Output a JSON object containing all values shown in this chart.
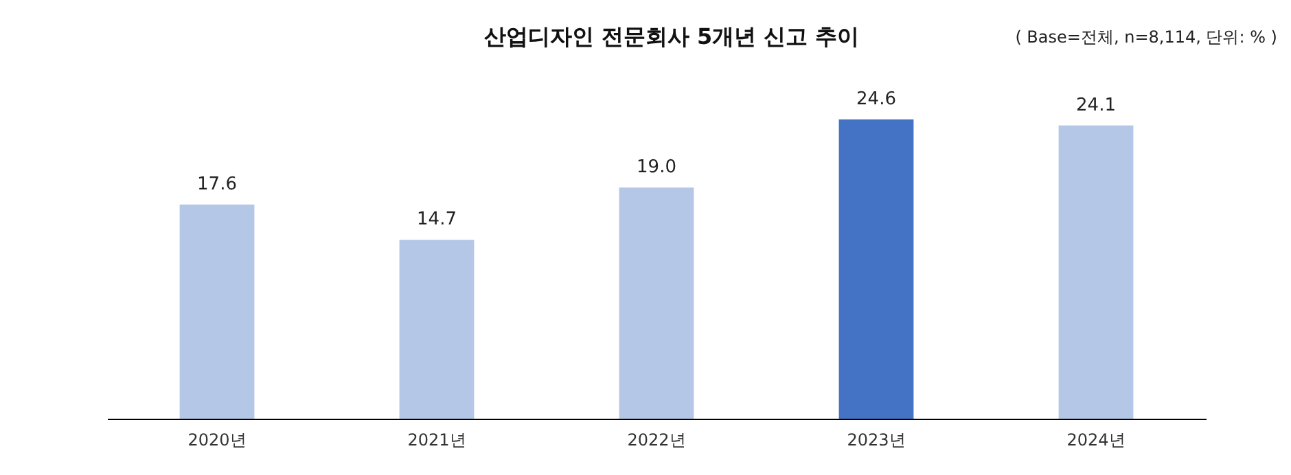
{
  "chart_data": {
    "type": "bar",
    "title": "산업디자인 전문회사 5개년 신고 추이",
    "annotations": [
      "( Base=전체, n=8,114, 단위: % )"
    ],
    "categories": [
      "2020년",
      "2021년",
      "2022년",
      "2023년",
      "2024년"
    ],
    "values": [
      17.6,
      14.7,
      19.0,
      24.6,
      24.1
    ],
    "colors": [
      "#b4c7e7",
      "#b4c7e7",
      "#b4c7e7",
      "#4472c4",
      "#b4c7e7"
    ],
    "value_labels": [
      "17.6",
      "14.7",
      "19.0",
      "24.6",
      "24.1"
    ],
    "grid": false,
    "tick_labels": "x"
  }
}
